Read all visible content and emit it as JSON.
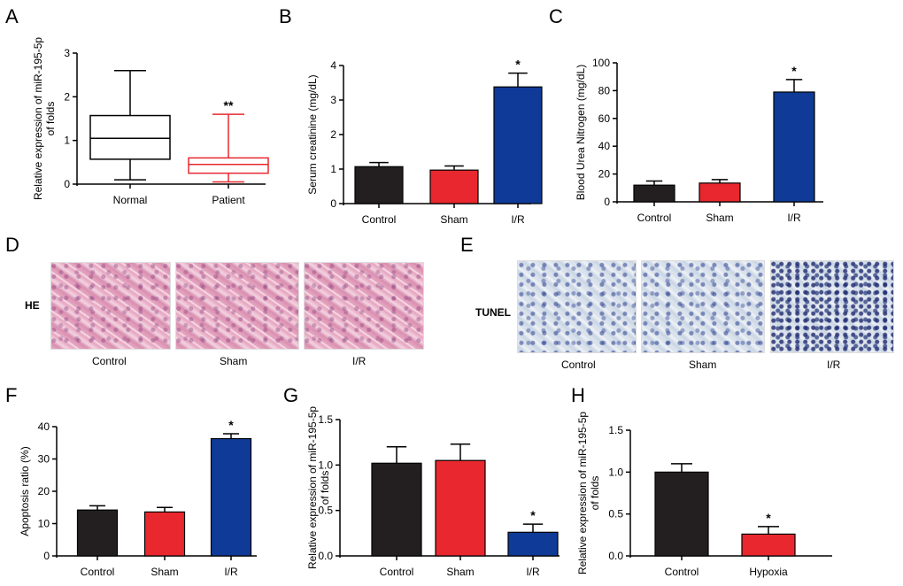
{
  "panels": {
    "A": "A",
    "B": "B",
    "C": "C",
    "D": "D",
    "E": "E",
    "F": "F",
    "G": "G",
    "H": "H"
  },
  "colors": {
    "black": "#231f20",
    "red": "#e8282e",
    "blue": "#0f3a97",
    "edge": "#000000",
    "box_black": "#000000",
    "box_red": "#e8282e"
  },
  "chart_data": [
    {
      "id": "A",
      "type": "box",
      "ylabel": "Relative expression of miR-195-5p\nof folds",
      "ylim": [
        0,
        3
      ],
      "yticks": [
        "0",
        "1",
        "2",
        "3"
      ],
      "categories": [
        "Normal",
        "Patient"
      ],
      "boxes": [
        {
          "min": 0.1,
          "q1": 0.57,
          "median": 1.05,
          "q3": 1.57,
          "max": 2.6,
          "color": "box_black",
          "sig": ""
        },
        {
          "min": 0.05,
          "q1": 0.25,
          "median": 0.45,
          "q3": 0.6,
          "max": 1.6,
          "color": "box_red",
          "sig": "**"
        }
      ]
    },
    {
      "id": "B",
      "type": "bar",
      "ylabel": "Serum creatinine (mg/dL)",
      "ylim": [
        0,
        4
      ],
      "yticks": [
        "0",
        "1",
        "2",
        "3",
        "4"
      ],
      "categories": [
        "Control",
        "Sham",
        "I/R"
      ],
      "values": [
        1.07,
        0.97,
        3.38
      ],
      "errors": [
        0.12,
        0.12,
        0.4
      ],
      "colors": [
        "black",
        "red",
        "blue"
      ],
      "sig": [
        "",
        "",
        "*"
      ]
    },
    {
      "id": "C",
      "type": "bar",
      "ylabel": "Blood Urea Nitrogen (mg/dL)",
      "ylim": [
        0,
        100
      ],
      "yticks": [
        "0",
        "20",
        "40",
        "60",
        "80",
        "100"
      ],
      "categories": [
        "Control",
        "Sham",
        "I/R"
      ],
      "values": [
        12,
        13.5,
        79
      ],
      "errors": [
        3,
        2.5,
        9
      ],
      "colors": [
        "black",
        "red",
        "blue"
      ],
      "sig": [
        "",
        "",
        "*"
      ]
    },
    {
      "id": "F",
      "type": "bar",
      "ylabel": "Apoptosis ratio (%)",
      "ylim": [
        0,
        40
      ],
      "yticks": [
        "0",
        "10",
        "20",
        "30",
        "40"
      ],
      "categories": [
        "Control",
        "Sham",
        "I/R"
      ],
      "values": [
        14.2,
        13.6,
        36.3
      ],
      "errors": [
        1.3,
        1.4,
        1.5
      ],
      "colors": [
        "black",
        "red",
        "blue"
      ],
      "sig": [
        "",
        "",
        "*"
      ]
    },
    {
      "id": "G",
      "type": "bar",
      "ylabel": "Relative expression of miR-195-5p\nof folds",
      "ylim": [
        0,
        1.5
      ],
      "yticks": [
        "0.0",
        "0.5",
        "1.0",
        "1.5"
      ],
      "categories": [
        "Control",
        "Sham",
        "I/R"
      ],
      "values": [
        1.02,
        1.05,
        0.26
      ],
      "errors": [
        0.18,
        0.18,
        0.09
      ],
      "colors": [
        "black",
        "red",
        "blue"
      ],
      "sig": [
        "",
        "",
        "*"
      ]
    },
    {
      "id": "H",
      "type": "bar",
      "ylabel": "Relative expression of miR-195-5p\nof folds",
      "ylim": [
        0,
        1.5
      ],
      "yticks": [
        "0.0",
        "0.5",
        "1.0",
        "1.5"
      ],
      "categories": [
        "Control",
        "Hypoxia"
      ],
      "values": [
        1.0,
        0.26
      ],
      "errors": [
        0.1,
        0.09
      ],
      "colors": [
        "black",
        "red"
      ],
      "sig": [
        "",
        "*"
      ]
    }
  ],
  "histology": {
    "D": {
      "row_label": "HE",
      "captions": [
        "Control",
        "Sham",
        "I/R"
      ]
    },
    "E": {
      "row_label": "TUNEL",
      "captions": [
        "Control",
        "Sham",
        "I/R"
      ]
    }
  }
}
